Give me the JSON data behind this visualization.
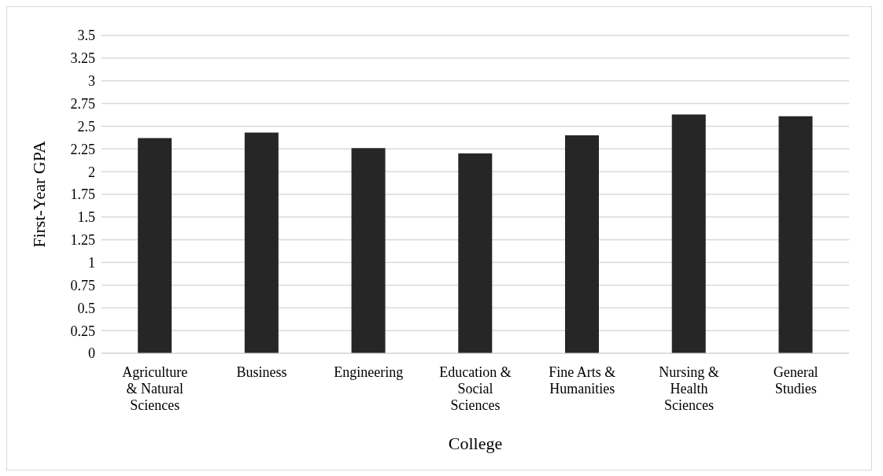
{
  "chart_data": {
    "type": "bar",
    "categories": [
      "Agriculture & Natural Sciences",
      "Business",
      "Engineering",
      "Education & Social Sciences",
      "Fine Arts & Humanities",
      "Nursing & Health Sciences",
      "General Studies"
    ],
    "values": [
      2.37,
      2.43,
      2.26,
      2.2,
      2.4,
      2.63,
      2.61
    ],
    "color": "#262626",
    "xlabel": "College",
    "ylabel": "First-Year GPA",
    "ylim": [
      0,
      3.5
    ],
    "yticks": [
      0,
      0.25,
      0.5,
      0.75,
      1,
      1.25,
      1.5,
      1.75,
      2,
      2.25,
      2.5,
      2.75,
      3,
      3.25,
      3.5
    ],
    "grid": "y"
  }
}
